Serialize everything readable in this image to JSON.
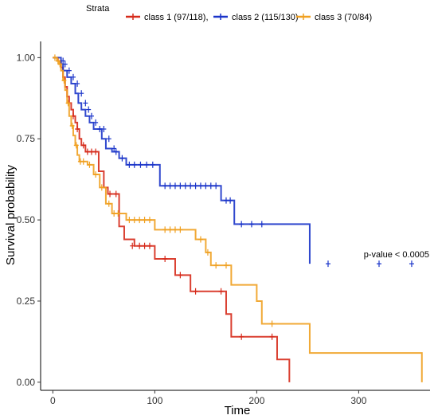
{
  "chart_data": {
    "type": "line",
    "subtype": "kaplan-meier",
    "title": "",
    "xlabel": "Time",
    "ylabel": "Survival probability",
    "xlim": [
      -12,
      370
    ],
    "ylim": [
      -0.025,
      1.05
    ],
    "x_ticks": [
      0,
      100,
      200,
      300
    ],
    "y_ticks": [
      0.0,
      0.25,
      0.5,
      0.75,
      1.0
    ],
    "y_tick_labels": [
      "0.00",
      "0.25",
      "0.50",
      "0.75",
      "1.00"
    ],
    "grid": false,
    "legend": {
      "title": "Strata",
      "placement": "top"
    },
    "annotation": {
      "text": "p-value < 0.0005",
      "x": 305,
      "y": 0.385
    },
    "series": [
      {
        "name": "class 1 (97/118),",
        "color": "#d62a1a",
        "steps": [
          [
            0,
            1.0
          ],
          [
            5,
            0.99
          ],
          [
            8,
            0.97
          ],
          [
            10,
            0.94
          ],
          [
            12,
            0.91
          ],
          [
            14,
            0.88
          ],
          [
            16,
            0.86
          ],
          [
            18,
            0.84
          ],
          [
            20,
            0.82
          ],
          [
            22,
            0.8
          ],
          [
            24,
            0.78
          ],
          [
            26,
            0.75
          ],
          [
            28,
            0.73
          ],
          [
            32,
            0.71
          ],
          [
            45,
            0.65
          ],
          [
            50,
            0.6
          ],
          [
            54,
            0.58
          ],
          [
            65,
            0.48
          ],
          [
            70,
            0.44
          ],
          [
            80,
            0.42
          ],
          [
            100,
            0.38
          ],
          [
            120,
            0.33
          ],
          [
            135,
            0.28
          ],
          [
            170,
            0.21
          ],
          [
            175,
            0.14
          ],
          [
            200,
            0.14
          ],
          [
            220,
            0.07
          ],
          [
            232,
            0.0
          ]
        ],
        "censor": [
          [
            20,
            0.82
          ],
          [
            24,
            0.78
          ],
          [
            30,
            0.73
          ],
          [
            34,
            0.71
          ],
          [
            38,
            0.71
          ],
          [
            42,
            0.71
          ],
          [
            56,
            0.58
          ],
          [
            62,
            0.58
          ],
          [
            78,
            0.42
          ],
          [
            85,
            0.42
          ],
          [
            90,
            0.42
          ],
          [
            95,
            0.42
          ],
          [
            110,
            0.38
          ],
          [
            125,
            0.33
          ],
          [
            140,
            0.28
          ],
          [
            165,
            0.28
          ],
          [
            185,
            0.14
          ],
          [
            215,
            0.14
          ]
        ]
      },
      {
        "name": "class 2 (115/130)",
        "color": "#1a34c9",
        "steps": [
          [
            0,
            1.0
          ],
          [
            8,
            0.98
          ],
          [
            10,
            0.96
          ],
          [
            14,
            0.94
          ],
          [
            18,
            0.92
          ],
          [
            22,
            0.89
          ],
          [
            25,
            0.86
          ],
          [
            28,
            0.84
          ],
          [
            32,
            0.82
          ],
          [
            36,
            0.8
          ],
          [
            40,
            0.78
          ],
          [
            48,
            0.75
          ],
          [
            52,
            0.72
          ],
          [
            58,
            0.71
          ],
          [
            65,
            0.69
          ],
          [
            72,
            0.67
          ],
          [
            105,
            0.605
          ],
          [
            165,
            0.56
          ],
          [
            178,
            0.487
          ],
          [
            252,
            0.365
          ]
        ],
        "censor": [
          [
            10,
            0.99
          ],
          [
            12,
            0.98
          ],
          [
            16,
            0.96
          ],
          [
            20,
            0.94
          ],
          [
            24,
            0.92
          ],
          [
            28,
            0.89
          ],
          [
            32,
            0.86
          ],
          [
            35,
            0.84
          ],
          [
            38,
            0.82
          ],
          [
            42,
            0.8
          ],
          [
            46,
            0.78
          ],
          [
            50,
            0.78
          ],
          [
            55,
            0.75
          ],
          [
            60,
            0.72
          ],
          [
            62,
            0.71
          ],
          [
            68,
            0.69
          ],
          [
            75,
            0.67
          ],
          [
            80,
            0.67
          ],
          [
            86,
            0.67
          ],
          [
            92,
            0.67
          ],
          [
            98,
            0.67
          ],
          [
            110,
            0.605
          ],
          [
            115,
            0.605
          ],
          [
            120,
            0.605
          ],
          [
            125,
            0.605
          ],
          [
            130,
            0.605
          ],
          [
            135,
            0.605
          ],
          [
            140,
            0.605
          ],
          [
            145,
            0.605
          ],
          [
            150,
            0.605
          ],
          [
            155,
            0.605
          ],
          [
            160,
            0.605
          ],
          [
            170,
            0.56
          ],
          [
            174,
            0.56
          ],
          [
            185,
            0.487
          ],
          [
            195,
            0.487
          ],
          [
            205,
            0.487
          ],
          [
            270,
            0.365
          ],
          [
            320,
            0.365
          ],
          [
            352,
            0.365
          ]
        ]
      },
      {
        "name": "class 3 (70/84)",
        "color": "#f0a020",
        "steps": [
          [
            0,
            1.0
          ],
          [
            4,
            0.99
          ],
          [
            6,
            0.98
          ],
          [
            8,
            0.96
          ],
          [
            10,
            0.93
          ],
          [
            12,
            0.9
          ],
          [
            14,
            0.86
          ],
          [
            16,
            0.82
          ],
          [
            18,
            0.79
          ],
          [
            20,
            0.76
          ],
          [
            22,
            0.73
          ],
          [
            24,
            0.7
          ],
          [
            26,
            0.68
          ],
          [
            34,
            0.67
          ],
          [
            40,
            0.64
          ],
          [
            46,
            0.6
          ],
          [
            52,
            0.55
          ],
          [
            58,
            0.52
          ],
          [
            72,
            0.5
          ],
          [
            100,
            0.47
          ],
          [
            135,
            0.47
          ],
          [
            140,
            0.44
          ],
          [
            150,
            0.4
          ],
          [
            155,
            0.36
          ],
          [
            175,
            0.3
          ],
          [
            200,
            0.25
          ],
          [
            205,
            0.18
          ],
          [
            250,
            0.18
          ],
          [
            252,
            0.09
          ],
          [
            360,
            0.09
          ],
          [
            362,
            0.0
          ]
        ],
        "censor": [
          [
            2,
            1.0
          ],
          [
            5,
            0.99
          ],
          [
            7,
            0.98
          ],
          [
            11,
            0.93
          ],
          [
            15,
            0.86
          ],
          [
            19,
            0.79
          ],
          [
            23,
            0.73
          ],
          [
            27,
            0.68
          ],
          [
            30,
            0.68
          ],
          [
            36,
            0.67
          ],
          [
            42,
            0.64
          ],
          [
            48,
            0.6
          ],
          [
            55,
            0.55
          ],
          [
            60,
            0.52
          ],
          [
            64,
            0.52
          ],
          [
            75,
            0.5
          ],
          [
            80,
            0.5
          ],
          [
            85,
            0.5
          ],
          [
            90,
            0.5
          ],
          [
            95,
            0.5
          ],
          [
            110,
            0.47
          ],
          [
            115,
            0.47
          ],
          [
            120,
            0.47
          ],
          [
            125,
            0.47
          ],
          [
            145,
            0.44
          ],
          [
            152,
            0.4
          ],
          [
            160,
            0.36
          ],
          [
            170,
            0.36
          ],
          [
            215,
            0.18
          ]
        ]
      }
    ]
  }
}
